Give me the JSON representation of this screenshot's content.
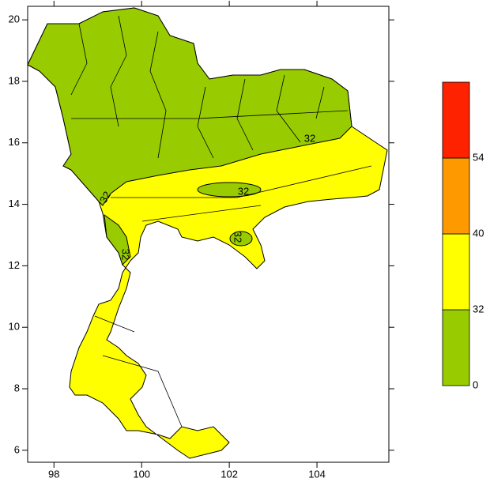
{
  "map": {
    "xlim": [
      97.4,
      105.64
    ],
    "ylim": [
      5.61,
      20.44
    ],
    "xticks": [
      98,
      100,
      102,
      104
    ],
    "yticks": [
      6,
      8,
      10,
      12,
      14,
      16,
      18,
      20
    ],
    "contour_labels": [
      32,
      32,
      32,
      32,
      32
    ]
  },
  "colorbar": {
    "levels": [
      0,
      32,
      40,
      54
    ],
    "colors": [
      "#99cc00",
      "#ffff00",
      "#ff9900",
      "#ff2200"
    ]
  }
}
